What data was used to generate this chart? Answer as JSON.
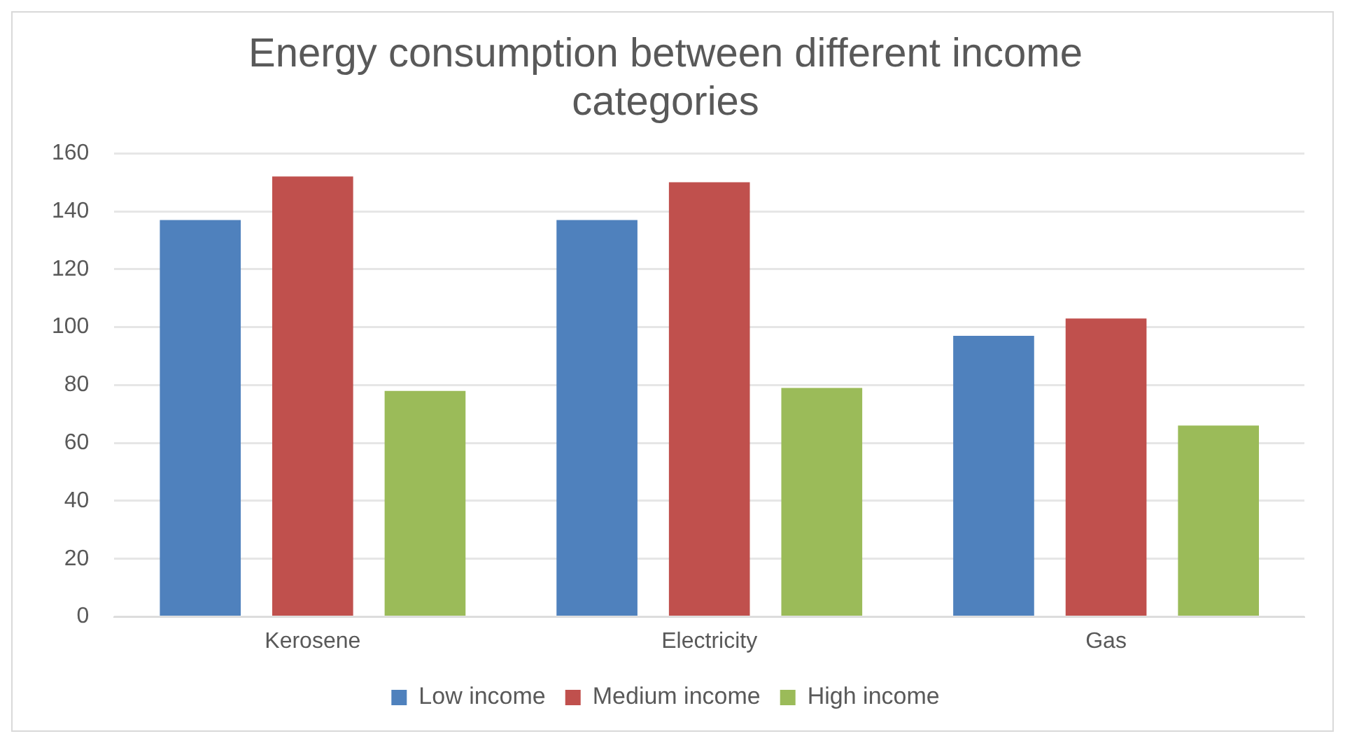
{
  "chart_data": {
    "type": "bar",
    "title": [
      "Energy consumption between different income",
      "categories"
    ],
    "categories": [
      "Kerosene",
      "Electricity",
      "Gas"
    ],
    "series": [
      {
        "name": "Low income",
        "color": "#4f81bd",
        "values": [
          137,
          137,
          97
        ]
      },
      {
        "name": "Medium income",
        "color": "#c0504d",
        "values": [
          152,
          150,
          103
        ]
      },
      {
        "name": "High income",
        "color": "#9bbb59",
        "values": [
          78,
          79,
          66
        ]
      }
    ],
    "ylim": [
      0,
      160
    ],
    "yticks": [
      0,
      20,
      40,
      60,
      80,
      100,
      120,
      140,
      160
    ],
    "grid": "y",
    "legend": "bottom"
  }
}
